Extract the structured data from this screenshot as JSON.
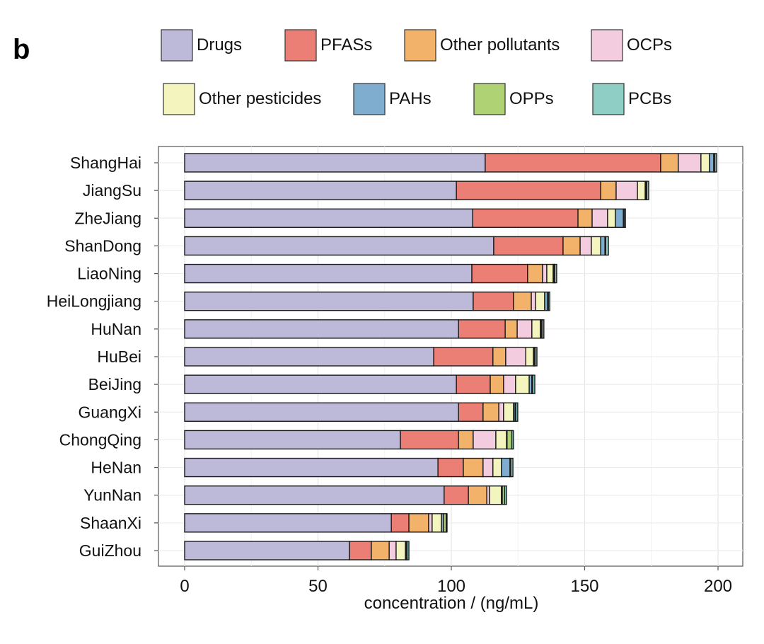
{
  "panel_label": "b",
  "chart_data": {
    "type": "bar",
    "orientation": "horizontal",
    "stacked": true,
    "title": "",
    "xlabel": "concentration / (ng/mL)",
    "ylabel": "",
    "xlim": [
      0,
      200
    ],
    "xticks": [
      0,
      50,
      100,
      150,
      200
    ],
    "grid": true,
    "legend_position": "top",
    "categories": [
      "ShangHai",
      "JiangSu",
      "ZheJiang",
      "ShanDong",
      "LiaoNing",
      "HeiLongjiang",
      "HuNan",
      "HuBei",
      "BeiJing",
      "GuangXi",
      "ChongQing",
      "HeNan",
      "YunNan",
      "ShaanXi",
      "GuiZhou"
    ],
    "series": [
      {
        "name": "Drugs",
        "color": "#BDBAD9",
        "values": [
          112.7,
          101.9,
          108.0,
          115.9,
          107.7,
          108.2,
          102.7,
          93.4,
          101.9,
          102.7,
          80.9,
          95.0,
          97.3,
          77.5,
          61.8
        ]
      },
      {
        "name": "PFASs",
        "color": "#EB7F76",
        "values": [
          65.8,
          54.1,
          39.5,
          26.0,
          20.9,
          15.1,
          17.5,
          22.2,
          12.7,
          9.2,
          21.8,
          9.5,
          9.1,
          6.6,
          8.2
        ]
      },
      {
        "name": "Other pollutants",
        "color": "#F3B26A",
        "values": [
          6.6,
          5.8,
          5.3,
          6.4,
          5.6,
          6.7,
          4.5,
          4.8,
          5.0,
          5.9,
          5.5,
          7.4,
          6.9,
          7.4,
          6.7
        ]
      },
      {
        "name": "OCPs",
        "color": "#F4CCE0",
        "values": [
          8.5,
          8.0,
          5.8,
          4.2,
          1.6,
          1.6,
          5.5,
          7.5,
          4.5,
          1.8,
          8.5,
          3.7,
          1.0,
          1.3,
          2.6
        ]
      },
      {
        "name": "Other pesticides",
        "color": "#F4F4BF",
        "values": [
          3.2,
          2.9,
          2.9,
          3.5,
          2.4,
          3.4,
          3.2,
          2.9,
          5.1,
          3.7,
          4.0,
          3.2,
          4.5,
          3.5,
          3.5
        ]
      },
      {
        "name": "PAHs",
        "color": "#7EADCF",
        "values": [
          1.6,
          0.3,
          3.0,
          1.6,
          0.3,
          1.1,
          0.3,
          0.3,
          1.0,
          0.6,
          0.2,
          3.2,
          0.3,
          0.8,
          0.3
        ]
      },
      {
        "name": "OPPs",
        "color": "#AFD374",
        "values": [
          0.4,
          0.3,
          0.3,
          0.3,
          0.3,
          0.3,
          0.3,
          0.3,
          0.3,
          0.3,
          1.8,
          0.3,
          0.9,
          1.0,
          0.3
        ]
      },
      {
        "name": "PCBs",
        "color": "#8ECEC5",
        "values": [
          0.7,
          0.7,
          0.5,
          1.0,
          0.7,
          0.5,
          0.7,
          0.7,
          0.8,
          0.7,
          0.6,
          0.8,
          0.7,
          0.3,
          0.7
        ]
      }
    ]
  }
}
